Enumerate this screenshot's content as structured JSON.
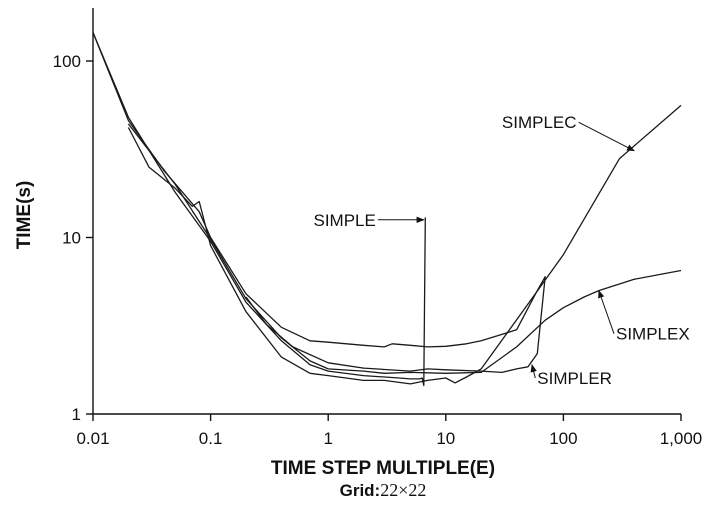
{
  "chart_data": {
    "type": "line",
    "xlabel": "TIME STEP MULTIPLE(E)",
    "ylabel": "TIME(s)",
    "subtitle_key": "Grid:",
    "subtitle_value": "22×22",
    "x_scale": "log",
    "y_scale": "log",
    "xlim": [
      0.01,
      1000
    ],
    "ylim": [
      1,
      200
    ],
    "x_ticks": [
      0.01,
      0.1,
      1,
      10,
      100,
      1000
    ],
    "x_tick_labels": [
      "0.01",
      "0.1",
      "1",
      "10",
      "100",
      "1,000"
    ],
    "y_ticks": [
      1,
      10,
      100
    ],
    "y_tick_labels": [
      "1",
      "10",
      "100"
    ],
    "grid": false,
    "series": [
      {
        "name": "SIMPLE",
        "points": [
          [
            0.01,
            145
          ],
          [
            0.02,
            48
          ],
          [
            0.05,
            18
          ],
          [
            0.1,
            9.5
          ],
          [
            0.2,
            4.3
          ],
          [
            0.4,
            2.6
          ],
          [
            0.7,
            1.9
          ],
          [
            1,
            1.75
          ],
          [
            2,
            1.65
          ],
          [
            4,
            1.6
          ],
          [
            5,
            1.58
          ],
          [
            6,
            1.58
          ],
          [
            6.3,
            1.6
          ],
          [
            6.5,
            1.45
          ],
          [
            6.7,
            13
          ]
        ]
      },
      {
        "name": "SIMPLEC",
        "points": [
          [
            0.02,
            42
          ],
          [
            0.03,
            25
          ],
          [
            0.05,
            19
          ],
          [
            0.07,
            15
          ],
          [
            0.08,
            16
          ],
          [
            0.1,
            9
          ],
          [
            0.2,
            3.8
          ],
          [
            0.4,
            2.1
          ],
          [
            0.7,
            1.7
          ],
          [
            1,
            1.65
          ],
          [
            2,
            1.55
          ],
          [
            3,
            1.55
          ],
          [
            5,
            1.48
          ],
          [
            7,
            1.55
          ],
          [
            10,
            1.6
          ],
          [
            12,
            1.5
          ],
          [
            15,
            1.62
          ],
          [
            20,
            1.8
          ],
          [
            50,
            4.2
          ],
          [
            100,
            8
          ],
          [
            300,
            28
          ],
          [
            1000,
            56
          ]
        ]
      },
      {
        "name": "SIMPLER",
        "points": [
          [
            0.01,
            145
          ],
          [
            0.02,
            46
          ],
          [
            0.04,
            24
          ],
          [
            0.08,
            14
          ],
          [
            0.1,
            10
          ],
          [
            0.2,
            4.8
          ],
          [
            0.4,
            3.1
          ],
          [
            0.7,
            2.6
          ],
          [
            1,
            2.55
          ],
          [
            2,
            2.45
          ],
          [
            3,
            2.4
          ],
          [
            3.5,
            2.5
          ],
          [
            5,
            2.45
          ],
          [
            7,
            2.4
          ],
          [
            10,
            2.42
          ],
          [
            15,
            2.5
          ],
          [
            20,
            2.6
          ],
          [
            40,
            3
          ],
          [
            60,
            5
          ],
          [
            70,
            6
          ],
          [
            60,
            2.2
          ],
          [
            50,
            1.85
          ],
          [
            40,
            1.8
          ],
          [
            30,
            1.72
          ],
          [
            20,
            1.75
          ],
          [
            10,
            1.78
          ],
          [
            7,
            1.8
          ],
          [
            5,
            1.75
          ],
          [
            2,
            1.82
          ],
          [
            1,
            1.95
          ],
          [
            0.5,
            2.4
          ],
          [
            0.3,
            3.2
          ],
          [
            0.2,
            4.6
          ]
        ]
      },
      {
        "name": "SIMPLEX",
        "points": [
          [
            0.02,
            44
          ],
          [
            0.05,
            20
          ],
          [
            0.1,
            9.8
          ],
          [
            0.2,
            4.5
          ],
          [
            0.4,
            2.7
          ],
          [
            0.7,
            2.0
          ],
          [
            1,
            1.8
          ],
          [
            2,
            1.75
          ],
          [
            3,
            1.7
          ],
          [
            5,
            1.72
          ],
          [
            10,
            1.7
          ],
          [
            20,
            1.72
          ],
          [
            40,
            2.4
          ],
          [
            70,
            3.4
          ],
          [
            100,
            4
          ],
          [
            150,
            4.6
          ],
          [
            200,
            5
          ],
          [
            400,
            5.8
          ],
          [
            1000,
            6.5
          ]
        ]
      }
    ],
    "annotations": [
      {
        "label": "SIMPLE",
        "text_x": 0.75,
        "text_y": 12.6,
        "arrow_to_x": 6.5,
        "arrow_to_y": 12.6
      },
      {
        "label": "SIMPLEC",
        "text_x": 30,
        "text_y": 45,
        "arrow_to_x": 400,
        "arrow_to_y": 31
      },
      {
        "label": "SIMPLEX",
        "text_x": 280,
        "text_y": 2.85,
        "arrow_to_x": 200,
        "arrow_to_y": 5
      },
      {
        "label": "SIMPLER",
        "text_x": 60,
        "text_y": 1.6,
        "arrow_to_x": 54,
        "arrow_to_y": 1.9
      }
    ]
  }
}
